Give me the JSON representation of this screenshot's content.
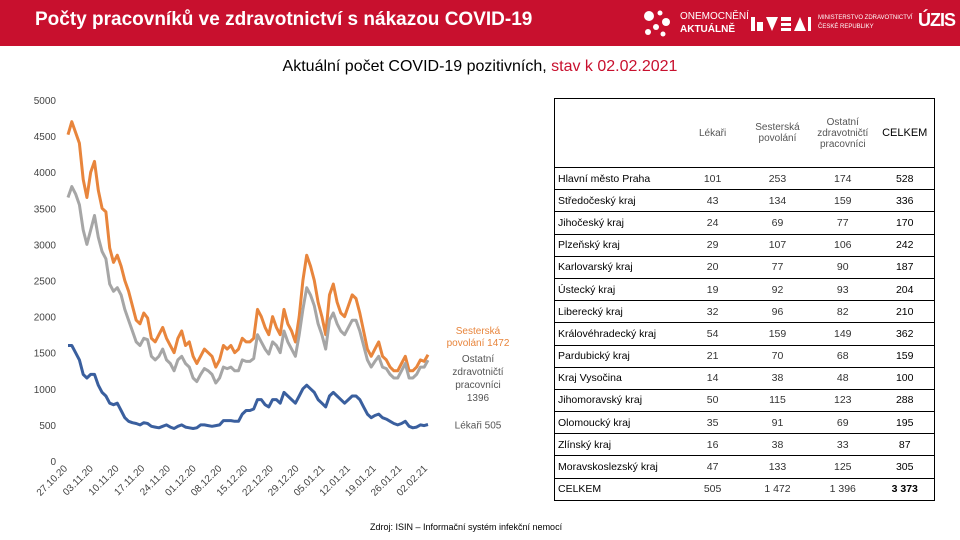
{
  "header": {
    "title": "Počty pracovníků ve zdravotnictví s nákazou COVID-19",
    "logo_onemocneni_line1": "ONEMOCNĚNÍ",
    "logo_onemocneni_line2": "AKTUÁLNĚ",
    "logo_ministry_line1": "MINISTERSTVO ZDRAVOTNICTVÍ",
    "logo_ministry_line2": "ČESKÉ REPUBLIKY",
    "logo_uzis": "ÚZIS"
  },
  "chart_title": {
    "main": "Aktuální počet COVID-19 pozitivních, ",
    "date_part": "stav k 02.02.2021"
  },
  "chart_data": {
    "type": "line",
    "title": "Aktuální počet COVID-19 pozitivních, stav k 02.02.2021",
    "ylim": [
      0,
      5000
    ],
    "yticks": [
      0,
      500,
      1000,
      1500,
      2000,
      2500,
      3000,
      3500,
      4000,
      4500,
      5000
    ],
    "xtick_labels": [
      "27.10.20",
      "03.11.20",
      "10.11.20",
      "17.11.20",
      "24.11.20",
      "01.12.20",
      "08.12.20",
      "15.12.20",
      "22.12.20",
      "29.12.20",
      "05.01.21",
      "12.01.21",
      "19.01.21",
      "26.01.21",
      "02.02.21"
    ],
    "series": [
      {
        "name": "Sesterská povolání",
        "label": "Sesterská povolání 1472",
        "color": "#e8853c",
        "values": [
          4520,
          4700,
          4550,
          4400,
          3900,
          3650,
          4000,
          4150,
          3750,
          3500,
          3450,
          2950,
          2750,
          2850,
          2700,
          2500,
          2350,
          2150,
          1950,
          1900,
          2050,
          1980,
          1700,
          1650,
          1750,
          1850,
          1700,
          1600,
          1500,
          1700,
          1800,
          1600,
          1650,
          1450,
          1350,
          1450,
          1550,
          1500,
          1450,
          1300,
          1400,
          1600,
          1550,
          1600,
          1500,
          1550,
          1700,
          1650,
          1650,
          1700,
          2100,
          2000,
          1850,
          1750,
          2000,
          1850,
          1750,
          2100,
          1900,
          1800,
          1650,
          2000,
          2500,
          2850,
          2700,
          2500,
          2200,
          2000,
          1750,
          2300,
          2450,
          2200,
          2050,
          2000,
          2150,
          2300,
          2250,
          2050,
          1800,
          1550,
          1450,
          1550,
          1650,
          1450,
          1400,
          1300,
          1250,
          1250,
          1350,
          1450,
          1250,
          1250,
          1300,
          1400,
          1380,
          1472
        ]
      },
      {
        "name": "Ostatní zdravotničtí pracovníci",
        "label": "Ostatní zdravotničtí pracovníci 1396",
        "color": "#a6a6a6",
        "values": [
          3650,
          3800,
          3700,
          3550,
          3200,
          3000,
          3200,
          3400,
          3100,
          2900,
          2800,
          2450,
          2350,
          2400,
          2300,
          2100,
          1950,
          1800,
          1650,
          1600,
          1700,
          1680,
          1450,
          1400,
          1450,
          1550,
          1400,
          1350,
          1250,
          1400,
          1450,
          1350,
          1300,
          1150,
          1100,
          1200,
          1280,
          1250,
          1200,
          1080,
          1150,
          1300,
          1280,
          1300,
          1250,
          1250,
          1400,
          1380,
          1380,
          1420,
          1750,
          1650,
          1550,
          1480,
          1650,
          1600,
          1500,
          1800,
          1650,
          1550,
          1450,
          1750,
          2100,
          2400,
          2300,
          2150,
          1900,
          1750,
          1550,
          1950,
          2050,
          1900,
          1800,
          1750,
          1850,
          1950,
          1950,
          1800,
          1600,
          1400,
          1300,
          1380,
          1450,
          1300,
          1280,
          1200,
          1150,
          1150,
          1250,
          1350,
          1150,
          1150,
          1200,
          1300,
          1300,
          1396
        ]
      },
      {
        "name": "Lékaři",
        "label": "Lékaři 505",
        "color": "#3a5f9e",
        "values": [
          1600,
          1600,
          1500,
          1400,
          1200,
          1150,
          1200,
          1200,
          1050,
          950,
          900,
          800,
          780,
          800,
          700,
          600,
          550,
          530,
          520,
          500,
          530,
          520,
          480,
          470,
          460,
          480,
          500,
          470,
          450,
          480,
          500,
          470,
          460,
          450,
          460,
          500,
          500,
          490,
          480,
          490,
          500,
          560,
          560,
          560,
          550,
          550,
          650,
          700,
          700,
          720,
          850,
          850,
          780,
          750,
          850,
          850,
          800,
          950,
          900,
          850,
          800,
          900,
          1000,
          1050,
          1000,
          950,
          850,
          800,
          750,
          900,
          950,
          900,
          850,
          800,
          850,
          900,
          900,
          850,
          750,
          650,
          600,
          630,
          650,
          600,
          580,
          550,
          520,
          500,
          520,
          550,
          480,
          460,
          470,
          500,
          490,
          505
        ]
      }
    ]
  },
  "table": {
    "headers": {
      "lekari": "Lékaři",
      "sesterska_line1": "Sesterská",
      "sesterska_line2": "povolání",
      "ostatni_line1": "Ostatní",
      "ostatni_line2": "zdravotničtí",
      "ostatni_line3": "pracovníci",
      "celkem": "CELKEM"
    },
    "rows": [
      {
        "region": "Hlavní město Praha",
        "lekari": "101",
        "sesterska": "253",
        "ostatni": "174",
        "celkem": "528"
      },
      {
        "region": "Středočeský kraj",
        "lekari": "43",
        "sesterska": "134",
        "ostatni": "159",
        "celkem": "336"
      },
      {
        "region": "Jihočeský kraj",
        "lekari": "24",
        "sesterska": "69",
        "ostatni": "77",
        "celkem": "170"
      },
      {
        "region": "Plzeňský kraj",
        "lekari": "29",
        "sesterska": "107",
        "ostatni": "106",
        "celkem": "242"
      },
      {
        "region": "Karlovarský kraj",
        "lekari": "20",
        "sesterska": "77",
        "ostatni": "90",
        "celkem": "187"
      },
      {
        "region": "Ústecký kraj",
        "lekari": "19",
        "sesterska": "92",
        "ostatni": "93",
        "celkem": "204"
      },
      {
        "region": "Liberecký kraj",
        "lekari": "32",
        "sesterska": "96",
        "ostatni": "82",
        "celkem": "210"
      },
      {
        "region": "Královéhradecký kraj",
        "lekari": "54",
        "sesterska": "159",
        "ostatni": "149",
        "celkem": "362"
      },
      {
        "region": "Pardubický kraj",
        "lekari": "21",
        "sesterska": "70",
        "ostatni": "68",
        "celkem": "159"
      },
      {
        "region": "Kraj Vysočina",
        "lekari": "14",
        "sesterska": "38",
        "ostatni": "48",
        "celkem": "100"
      },
      {
        "region": "Jihomoravský kraj",
        "lekari": "50",
        "sesterska": "115",
        "ostatni": "123",
        "celkem": "288"
      },
      {
        "region": "Olomoucký kraj",
        "lekari": "35",
        "sesterska": "91",
        "ostatni": "69",
        "celkem": "195"
      },
      {
        "region": "Zlínský kraj",
        "lekari": "16",
        "sesterska": "38",
        "ostatni": "33",
        "celkem": "87"
      },
      {
        "region": "Moravskoslezský kraj",
        "lekari": "47",
        "sesterska": "133",
        "ostatni": "125",
        "celkem": "305"
      },
      {
        "region": "CELKEM",
        "lekari": "505",
        "sesterska": "1 472",
        "ostatni": "1 396",
        "celkem": "3 373"
      }
    ]
  },
  "source": "Zdroj: ISIN – Informační systém infekční nemocí",
  "colors": {
    "header_red": "#c8102e",
    "sesterska": "#e8853c",
    "ostatni": "#a6a6a6",
    "lekari": "#3a5f9e"
  }
}
